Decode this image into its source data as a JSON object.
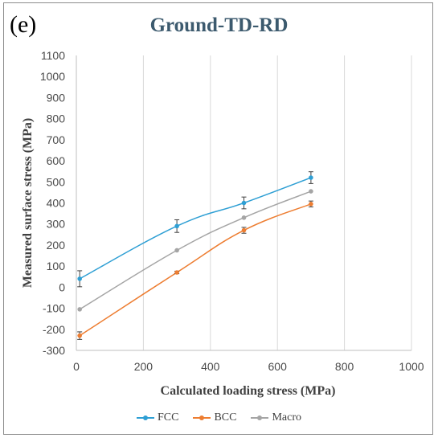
{
  "panel_label": "(e)",
  "chart_data": {
    "type": "line",
    "title": "Ground-TD-RD",
    "xlabel": "Calculated loading stress (MPa)",
    "ylabel": "Measured surface stress (MPa)",
    "xlim": [
      0,
      1000
    ],
    "ylim": [
      -300,
      1100
    ],
    "xticks": [
      "0",
      "200",
      "400",
      "600",
      "800",
      "1000"
    ],
    "yticks": [
      "-300",
      "-200",
      "-100",
      "0",
      "100",
      "200",
      "300",
      "400",
      "500",
      "600",
      "700",
      "800",
      "900",
      "1000",
      "1100"
    ],
    "grid": "vertical",
    "legend_position": "bottom",
    "series": [
      {
        "name": "FCC",
        "color": "#2e9fd4",
        "x": [
          10,
          300,
          500,
          700
        ],
        "y": [
          40,
          290,
          400,
          520
        ],
        "err": [
          38,
          30,
          28,
          28
        ]
      },
      {
        "name": "BCC",
        "color": "#ed7d31",
        "x": [
          10,
          300,
          500,
          700
        ],
        "y": [
          -230,
          70,
          270,
          395
        ],
        "err": [
          18,
          6,
          14,
          14
        ]
      },
      {
        "name": "Macro",
        "color": "#a5a5a5",
        "x": [
          10,
          300,
          500,
          700
        ],
        "y": [
          -105,
          175,
          330,
          455
        ],
        "err": [
          0,
          0,
          0,
          0
        ]
      }
    ]
  }
}
